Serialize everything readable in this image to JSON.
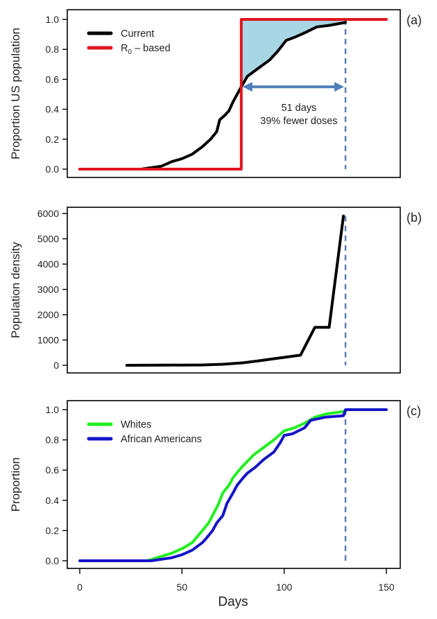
{
  "chart_data": [
    {
      "panel_label": "(a)",
      "type": "line",
      "ylabel": "Proportion US population",
      "xlim": [
        0,
        150
      ],
      "ylim": [
        0,
        1
      ],
      "yticks": [
        0.0,
        0.2,
        0.4,
        0.6,
        0.8,
        1.0
      ],
      "ytick_labels": [
        "0.0",
        "0.2",
        "0.4",
        "0.6",
        "0.8",
        "1.0"
      ],
      "legend": "top-left",
      "series": [
        {
          "name": "Current",
          "color": "#000000",
          "x": [
            0,
            30,
            40,
            45,
            50,
            55,
            60,
            64,
            67,
            68.5,
            71,
            73,
            75,
            77,
            79,
            82,
            86,
            90,
            93,
            97,
            101,
            105,
            110,
            116,
            122,
            126,
            130
          ],
          "y": [
            0,
            0,
            0.02,
            0.05,
            0.07,
            0.1,
            0.15,
            0.2,
            0.25,
            0.33,
            0.36,
            0.39,
            0.45,
            0.5,
            0.55,
            0.62,
            0.66,
            0.7,
            0.73,
            0.79,
            0.86,
            0.88,
            0.91,
            0.95,
            0.96,
            0.97,
            0.98
          ]
        },
        {
          "name": "R0 – based",
          "legend_label_main": "R",
          "legend_label_sub": "0",
          "legend_label_rest": " – based",
          "color": "#e0141e",
          "x": [
            0,
            79,
            79,
            150
          ],
          "y": [
            0,
            0,
            1,
            1
          ]
        }
      ],
      "shaded_region": {
        "from_day": 79,
        "to_day": 130,
        "between": [
          "Current",
          "R0 – based"
        ],
        "color": "#a8d6e4"
      },
      "vline": {
        "x": 130,
        "color": "#5b7fb5",
        "style": "dashed"
      },
      "arrow": {
        "from": 79,
        "to": 130,
        "y": 0.55,
        "color": "#4f7fb8"
      },
      "annotations": [
        "51 days",
        "39% fewer doses"
      ]
    },
    {
      "panel_label": "(b)",
      "type": "line",
      "ylabel": "Population density",
      "xlim": [
        0,
        150
      ],
      "ylim": [
        0,
        6000
      ],
      "yticks": [
        0,
        1000,
        2000,
        3000,
        4000,
        5000,
        6000
      ],
      "ytick_labels": [
        "0",
        "1000",
        "2000",
        "3000",
        "4000",
        "5000",
        "6000"
      ],
      "series": [
        {
          "color": "#000000",
          "x": [
            23,
            40,
            60,
            70,
            80,
            88,
            95,
            108,
            115,
            122,
            129
          ],
          "y": [
            0,
            5,
            15,
            40,
            100,
            180,
            260,
            400,
            1500,
            1500,
            5900
          ]
        }
      ],
      "vline": {
        "x": 130,
        "color": "#5b7fb5",
        "style": "dashed"
      }
    },
    {
      "panel_label": "(c)",
      "type": "line",
      "ylabel": "Proportion",
      "xlabel": "Days",
      "xlim": [
        0,
        150
      ],
      "xticks": [
        0,
        50,
        100,
        150
      ],
      "xtick_labels": [
        "0",
        "50",
        "100",
        "150"
      ],
      "ylim": [
        0,
        1
      ],
      "yticks": [
        0.0,
        0.2,
        0.4,
        0.6,
        0.8,
        1.0
      ],
      "ytick_labels": [
        "0.0",
        "0.2",
        "0.4",
        "0.6",
        "0.8",
        "1.0"
      ],
      "legend": "top-left",
      "series": [
        {
          "name": "Whites",
          "color": "#22ee22",
          "x": [
            0,
            33,
            40,
            45,
            50,
            55,
            60,
            63,
            65,
            68,
            70,
            73,
            75,
            78,
            80,
            85,
            90,
            95,
            100,
            105,
            110,
            115,
            120,
            125,
            130
          ],
          "y": [
            0,
            0,
            0.03,
            0.05,
            0.08,
            0.12,
            0.2,
            0.25,
            0.3,
            0.38,
            0.45,
            0.5,
            0.55,
            0.6,
            0.63,
            0.7,
            0.75,
            0.8,
            0.86,
            0.88,
            0.91,
            0.95,
            0.97,
            0.98,
            0.99
          ]
        },
        {
          "name": "African Americans",
          "color": "#1414c8",
          "x": [
            0,
            35,
            45,
            50,
            55,
            60,
            62,
            65,
            67,
            70,
            72,
            75,
            77,
            80,
            82,
            86,
            90,
            93,
            95,
            98,
            100,
            104,
            107,
            110,
            113,
            120,
            129,
            130,
            150
          ],
          "y": [
            0,
            0,
            0.02,
            0.04,
            0.07,
            0.12,
            0.15,
            0.2,
            0.25,
            0.3,
            0.38,
            0.45,
            0.5,
            0.55,
            0.58,
            0.62,
            0.67,
            0.7,
            0.72,
            0.78,
            0.83,
            0.84,
            0.86,
            0.88,
            0.93,
            0.95,
            0.96,
            1.0,
            1.0
          ]
        }
      ],
      "vline": {
        "x": 130,
        "color": "#5b7fb5",
        "style": "dashed"
      }
    }
  ]
}
